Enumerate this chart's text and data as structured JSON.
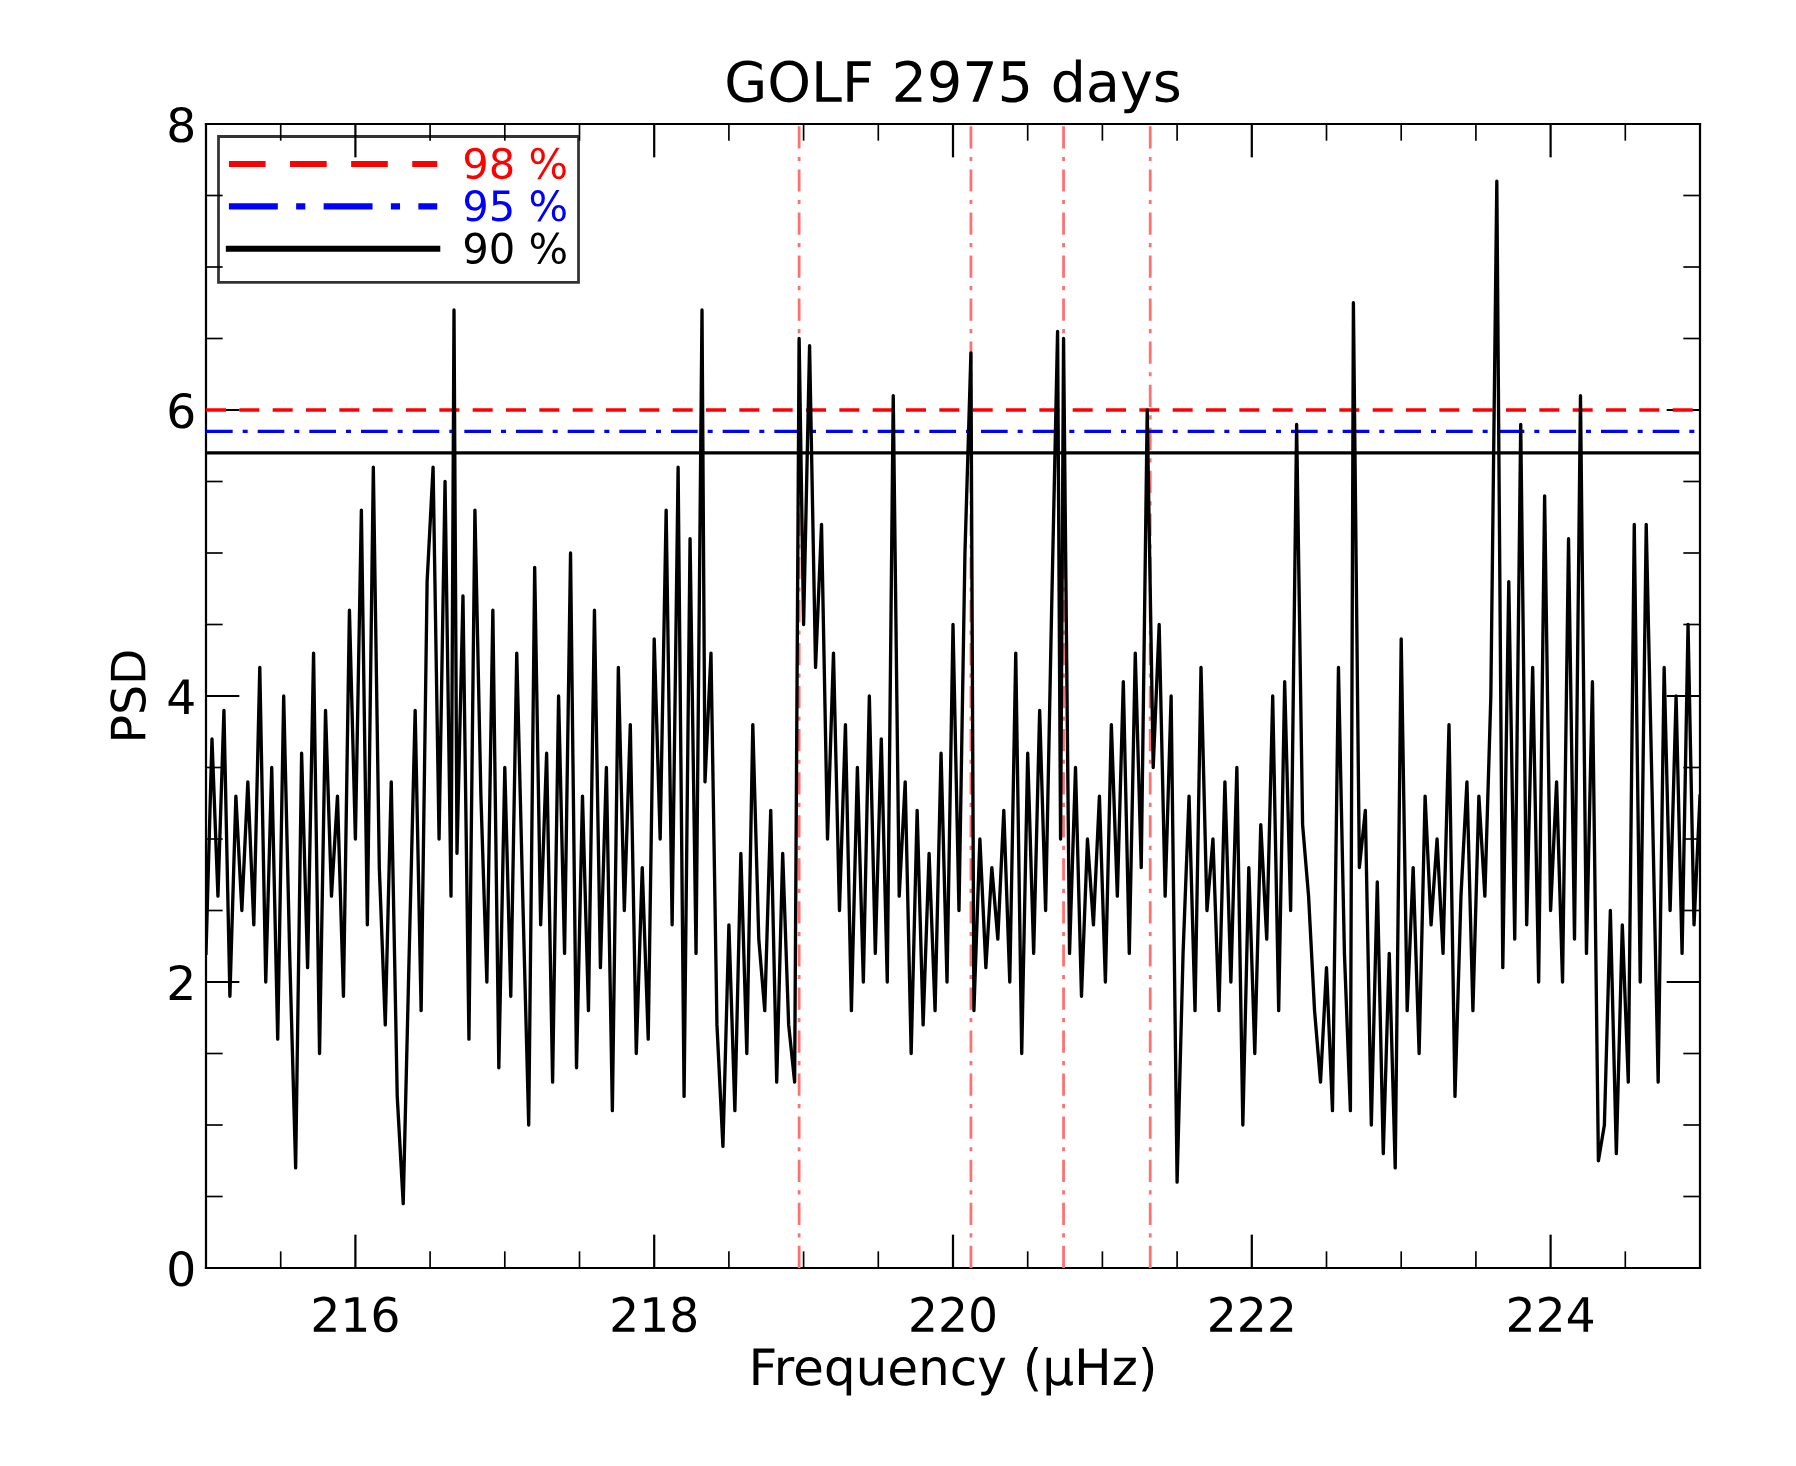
{
  "chart_data": {
    "type": "line",
    "title": "GOLF 2975 days",
    "xlabel": "Frequency (μHz)",
    "ylabel": "PSD",
    "xlim": [
      215,
      225
    ],
    "xticks": [
      216,
      218,
      220,
      222,
      224
    ],
    "ylim": [
      0,
      8
    ],
    "yticks": [
      0,
      2,
      4,
      6,
      8
    ],
    "grid": false,
    "legend": "top left",
    "marker": "none",
    "line_style": "solid",
    "series": [
      {
        "color": "#000000",
        "x": [
          215.0,
          215.04,
          215.08,
          215.12,
          215.16,
          215.2,
          215.24,
          215.28,
          215.32,
          215.36,
          215.4,
          215.44,
          215.48,
          215.52,
          215.56,
          215.6,
          215.64,
          215.68,
          215.72,
          215.76,
          215.8,
          215.84,
          215.88,
          215.92,
          215.96,
          216.0,
          216.04,
          216.08,
          216.12,
          216.16,
          216.2,
          216.24,
          216.28,
          216.32,
          216.36,
          216.4,
          216.44,
          216.48,
          216.52,
          216.56,
          216.6,
          216.64,
          216.66,
          216.68,
          216.72,
          216.76,
          216.8,
          216.84,
          216.88,
          216.92,
          216.96,
          217.0,
          217.04,
          217.08,
          217.12,
          217.16,
          217.2,
          217.24,
          217.28,
          217.32,
          217.36,
          217.4,
          217.44,
          217.48,
          217.52,
          217.56,
          217.6,
          217.64,
          217.68,
          217.72,
          217.76,
          217.8,
          217.84,
          217.88,
          217.92,
          217.96,
          218.0,
          218.04,
          218.08,
          218.12,
          218.16,
          218.2,
          218.24,
          218.28,
          218.32,
          218.34,
          218.38,
          218.42,
          218.46,
          218.5,
          218.54,
          218.58,
          218.62,
          218.66,
          218.7,
          218.74,
          218.78,
          218.82,
          218.86,
          218.9,
          218.94,
          218.97,
          219.0,
          219.04,
          219.08,
          219.12,
          219.16,
          219.2,
          219.24,
          219.28,
          219.32,
          219.36,
          219.4,
          219.44,
          219.48,
          219.52,
          219.56,
          219.6,
          219.64,
          219.68,
          219.72,
          219.76,
          219.8,
          219.84,
          219.88,
          219.92,
          219.96,
          220.0,
          220.04,
          220.08,
          220.12,
          220.14,
          220.18,
          220.22,
          220.26,
          220.3,
          220.34,
          220.38,
          220.42,
          220.46,
          220.5,
          220.54,
          220.58,
          220.62,
          220.66,
          220.7,
          220.72,
          220.74,
          220.78,
          220.82,
          220.86,
          220.9,
          220.94,
          220.98,
          221.02,
          221.06,
          221.1,
          221.14,
          221.18,
          221.22,
          221.26,
          221.3,
          221.34,
          221.38,
          221.42,
          221.46,
          221.5,
          221.54,
          221.58,
          221.62,
          221.66,
          221.7,
          221.74,
          221.78,
          221.82,
          221.86,
          221.9,
          221.94,
          221.98,
          222.02,
          222.06,
          222.1,
          222.14,
          222.18,
          222.22,
          222.26,
          222.3,
          222.34,
          222.38,
          222.42,
          222.46,
          222.5,
          222.54,
          222.58,
          222.62,
          222.66,
          222.68,
          222.72,
          222.76,
          222.8,
          222.84,
          222.88,
          222.92,
          222.96,
          223.0,
          223.04,
          223.08,
          223.12,
          223.16,
          223.2,
          223.24,
          223.28,
          223.32,
          223.36,
          223.4,
          223.44,
          223.48,
          223.52,
          223.56,
          223.6,
          223.64,
          223.68,
          223.72,
          223.76,
          223.8,
          223.84,
          223.88,
          223.92,
          223.96,
          224.0,
          224.04,
          224.08,
          224.12,
          224.16,
          224.2,
          224.24,
          224.28,
          224.32,
          224.36,
          224.4,
          224.44,
          224.48,
          224.52,
          224.56,
          224.6,
          224.64,
          224.68,
          224.72,
          224.76,
          224.8,
          224.84,
          224.88,
          224.92,
          224.96,
          225.0
        ],
        "values": [
          2.2,
          3.7,
          2.6,
          3.9,
          1.9,
          3.3,
          2.5,
          3.4,
          2.4,
          4.2,
          2.0,
          3.5,
          1.6,
          4.0,
          2.2,
          0.7,
          3.6,
          2.1,
          4.3,
          1.5,
          3.9,
          2.6,
          3.3,
          1.9,
          4.6,
          3.0,
          5.3,
          2.4,
          5.6,
          2.8,
          1.7,
          3.4,
          1.2,
          0.45,
          2.2,
          3.9,
          1.8,
          4.8,
          5.6,
          3.0,
          5.5,
          2.6,
          6.7,
          2.9,
          4.7,
          1.6,
          5.3,
          3.3,
          2.0,
          4.6,
          1.4,
          3.5,
          1.9,
          4.3,
          2.6,
          1.0,
          4.9,
          2.4,
          3.6,
          1.3,
          4.0,
          2.2,
          5.0,
          1.4,
          3.3,
          1.8,
          4.6,
          2.1,
          3.5,
          1.1,
          4.2,
          2.5,
          3.8,
          1.5,
          2.8,
          1.6,
          4.4,
          3.0,
          5.3,
          2.4,
          5.6,
          1.2,
          5.1,
          2.2,
          6.7,
          3.4,
          4.3,
          1.7,
          0.85,
          2.4,
          1.1,
          2.9,
          1.5,
          3.8,
          2.3,
          1.8,
          3.2,
          1.3,
          2.9,
          1.7,
          1.3,
          6.5,
          4.5,
          6.45,
          4.2,
          5.2,
          3.0,
          4.3,
          2.5,
          3.8,
          1.8,
          3.5,
          2.0,
          4.0,
          2.2,
          3.7,
          2.0,
          6.1,
          2.6,
          3.4,
          1.5,
          3.2,
          1.7,
          2.9,
          1.8,
          3.6,
          2.0,
          4.5,
          2.5,
          5.0,
          6.4,
          1.8,
          3.0,
          2.1,
          2.8,
          2.3,
          3.2,
          2.0,
          4.3,
          1.5,
          3.6,
          2.2,
          3.9,
          2.5,
          4.6,
          6.55,
          3.0,
          6.5,
          2.2,
          3.5,
          1.9,
          3.0,
          2.4,
          3.3,
          2.0,
          3.8,
          2.6,
          4.1,
          2.2,
          4.3,
          2.8,
          6.0,
          3.5,
          4.5,
          2.6,
          4.0,
          0.6,
          2.2,
          3.3,
          1.8,
          4.2,
          2.5,
          3.0,
          1.8,
          3.4,
          2.0,
          3.5,
          1.0,
          2.8,
          1.5,
          3.1,
          2.3,
          4.0,
          1.8,
          4.1,
          2.5,
          5.9,
          3.1,
          2.6,
          1.8,
          1.3,
          2.1,
          1.1,
          4.2,
          2.2,
          1.1,
          6.75,
          2.8,
          3.2,
          1.0,
          2.7,
          0.8,
          2.2,
          0.7,
          4.4,
          1.8,
          2.8,
          1.5,
          3.3,
          2.4,
          3.0,
          2.2,
          3.8,
          1.2,
          2.6,
          3.4,
          1.8,
          3.3,
          2.6,
          4.0,
          7.6,
          2.1,
          4.8,
          2.3,
          5.9,
          2.4,
          4.2,
          2.0,
          5.4,
          2.5,
          3.4,
          2.0,
          5.1,
          2.3,
          6.1,
          2.2,
          4.1,
          0.75,
          1.0,
          2.5,
          0.8,
          2.4,
          1.3,
          5.2,
          2.0,
          5.2,
          3.3,
          1.3,
          4.2,
          2.5,
          4.0,
          2.2,
          4.5,
          2.4,
          3.3
        ]
      },
      {
        "name": "98 %",
        "color": "#ff0000",
        "line_style": "dashed",
        "x": [
          215,
          225
        ],
        "values": [
          6.0,
          6.0
        ]
      },
      {
        "name": "95 %",
        "color": "#0000ff",
        "line_style": "dashdot",
        "x": [
          215,
          225
        ],
        "values": [
          5.85,
          5.85
        ]
      },
      {
        "name": "90 %",
        "color": "#000000",
        "line_style": "solid",
        "x": [
          215,
          225
        ],
        "values": [
          5.7,
          5.7
        ]
      }
    ],
    "ref_lines": [
      {
        "axis": "x",
        "value": 218.97,
        "color": "#ff7070",
        "line_style": "dashdot"
      },
      {
        "axis": "x",
        "value": 220.12,
        "color": "#ff7070",
        "line_style": "dashdot"
      },
      {
        "axis": "x",
        "value": 220.74,
        "color": "#ff7070",
        "line_style": "dashdot"
      },
      {
        "axis": "x",
        "value": 221.32,
        "color": "#ff7070",
        "line_style": "dashdot"
      }
    ]
  }
}
